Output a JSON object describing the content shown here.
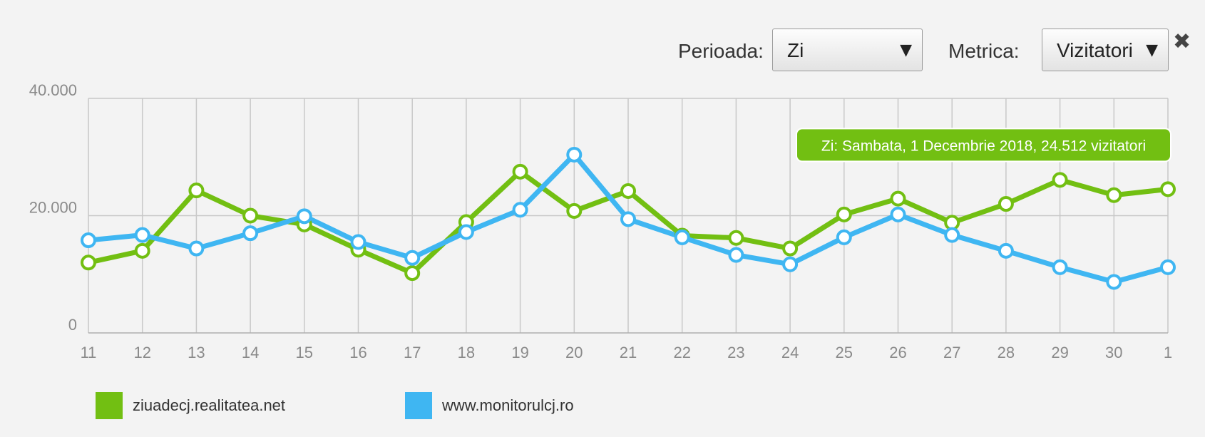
{
  "controls": {
    "period_label": "Perioada:",
    "period_value": "Zi",
    "metric_label": "Metrica:",
    "metric_value": "Vizitatori",
    "arrow": "▼",
    "close": "✖"
  },
  "tooltip": {
    "text": "Zi: Sambata, 1 Decembrie 2018, 24.512 vizitatori",
    "category": "1",
    "series_index": 0
  },
  "chart_data": {
    "type": "line",
    "categories": [
      "11",
      "12",
      "13",
      "14",
      "15",
      "16",
      "17",
      "18",
      "19",
      "20",
      "21",
      "22",
      "23",
      "24",
      "25",
      "26",
      "27",
      "28",
      "29",
      "30",
      "1"
    ],
    "ylim": [
      0,
      40000
    ],
    "yticks": [
      0,
      20000,
      40000
    ],
    "ytick_labels": [
      "0",
      "20.000",
      "40.000"
    ],
    "grid": true,
    "legend_position": "bottom-left",
    "series": [
      {
        "name": "ziuadecj.realitatea.net",
        "color": "#72bf12",
        "values": [
          12000,
          14000,
          24300,
          20000,
          18500,
          14200,
          10200,
          18900,
          27500,
          20800,
          24200,
          16600,
          16200,
          14400,
          20200,
          22900,
          18800,
          22000,
          26100,
          23500,
          24512
        ]
      },
      {
        "name": "www.monitorulcj.ro",
        "color": "#3fb6f2",
        "values": [
          15800,
          16700,
          14400,
          17000,
          19900,
          15500,
          12800,
          17200,
          21000,
          30400,
          19400,
          16300,
          13300,
          11700,
          16300,
          20200,
          16700,
          14000,
          11200,
          8700,
          11200
        ]
      }
    ]
  }
}
